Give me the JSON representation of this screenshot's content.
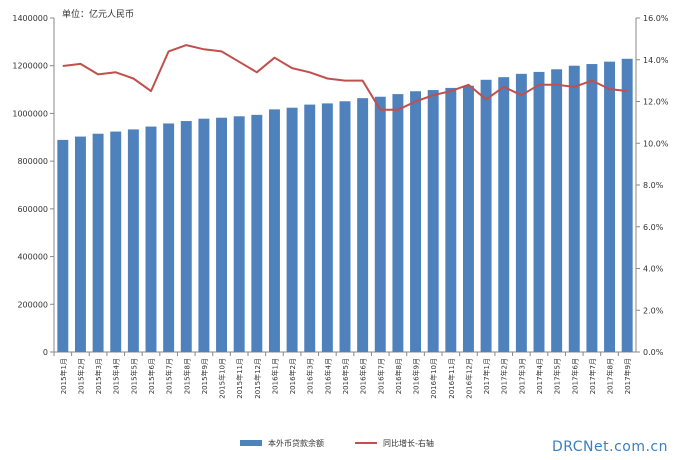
{
  "chart_data": {
    "type": "bar",
    "unit_label": "单位：亿元人民币",
    "categories": [
      "2015年1月",
      "2015年2月",
      "2015年3月",
      "2015年4月",
      "2015年5月",
      "2015年6月",
      "2015年7月",
      "2015年8月",
      "2015年9月",
      "2015年10月",
      "2015年11月",
      "2015年12月",
      "2016年1月",
      "2016年2月",
      "2016年3月",
      "2016年4月",
      "2016年5月",
      "2016年6月",
      "2016年7月",
      "2016年8月",
      "2016年9月",
      "2016年10月",
      "2016年11月",
      "2016年12月",
      "2017年1月",
      "2017年2月",
      "2017年3月",
      "2017年4月",
      "2017年5月",
      "2017年6月",
      "2017年7月",
      "2017年8月",
      "2017年9月"
    ],
    "series": [
      {
        "name": "本外币贷款余额",
        "type": "bar",
        "axis": "left",
        "color": "#4f81bd",
        "values": [
          889000,
          903000,
          915000,
          924000,
          933000,
          945000,
          958000,
          968000,
          978000,
          982000,
          988000,
          994000,
          1017000,
          1024000,
          1037000,
          1042000,
          1051000,
          1064000,
          1070000,
          1081000,
          1093000,
          1098000,
          1107000,
          1116000,
          1141000,
          1152000,
          1166000,
          1174000,
          1185000,
          1200000,
          1207000,
          1217000,
          1229000
        ]
      },
      {
        "name": "同比增长-右轴",
        "type": "line",
        "axis": "right",
        "color": "#c0504d",
        "values": [
          13.7,
          13.8,
          13.3,
          13.4,
          13.1,
          12.5,
          14.4,
          14.7,
          14.5,
          14.4,
          13.9,
          13.4,
          14.1,
          13.6,
          13.4,
          13.1,
          13.0,
          13.0,
          11.6,
          11.6,
          12.0,
          12.3,
          12.5,
          12.8,
          12.1,
          12.7,
          12.3,
          12.8,
          12.8,
          12.7,
          13.0,
          12.6,
          12.5
        ]
      }
    ],
    "y_left": {
      "min": 0,
      "max": 1400000,
      "ticks": [
        "0",
        "200000",
        "400000",
        "600000",
        "800000",
        "1000000",
        "1200000",
        "1400000"
      ]
    },
    "y_right": {
      "min": 0,
      "max": 16,
      "ticks": [
        "0.0%",
        "2.0%",
        "4.0%",
        "6.0%",
        "8.0%",
        "10.0%",
        "12.0%",
        "14.0%",
        "16.0%"
      ]
    },
    "grid": false,
    "legend_position": "bottom"
  },
  "watermark": "DRCNet.com.cn"
}
